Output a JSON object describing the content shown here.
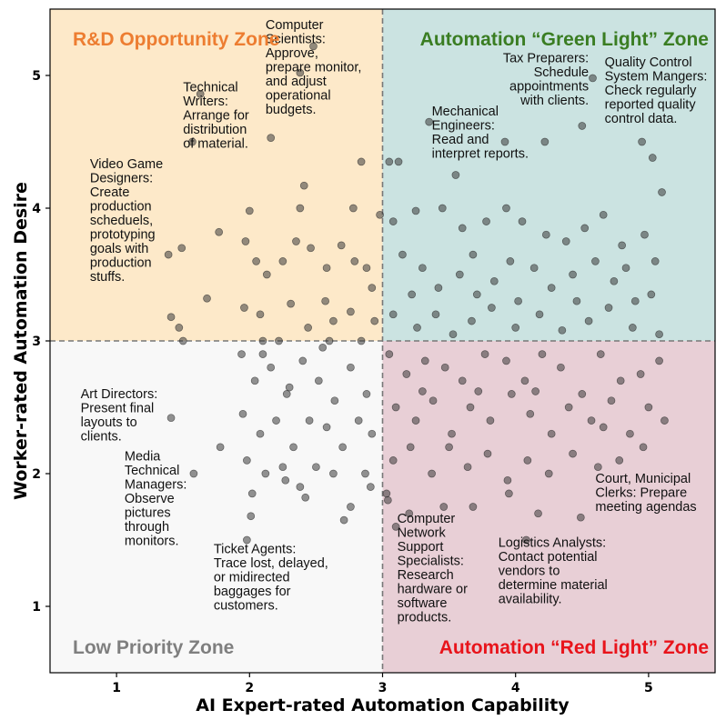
{
  "chart_data": {
    "type": "scatter",
    "xlabel": "AI Expert-rated Automation Capability",
    "ylabel": "Worker-rated Automation Desire",
    "xlim": [
      0.5,
      5.5
    ],
    "ylim": [
      0.5,
      5.5
    ],
    "xticks": [
      "1",
      "2",
      "3",
      "4",
      "5"
    ],
    "yticks": [
      "1",
      "2",
      "3",
      "4",
      "5"
    ],
    "threshold_x": 3,
    "threshold_y": 3,
    "grid": false,
    "zones": [
      {
        "label": "R&D Opportunity Zone",
        "color": "#ED7D31",
        "fill": "#FDE9C9",
        "quadrant": "top-left"
      },
      {
        "label": "Automation “Green Light” Zone",
        "color": "#3A7D22",
        "fill": "#CBE3E1",
        "quadrant": "top-right"
      },
      {
        "label": "Low Priority Zone",
        "color": "#7F7F7F",
        "fill": "#F8F8F8",
        "quadrant": "bottom-left"
      },
      {
        "label": "Automation “Red Light” Zone",
        "color": "#E8141B",
        "fill": "#E8CFD6",
        "quadrant": "bottom-right"
      }
    ],
    "annotations": [
      {
        "lines": [
          "Computer",
          "Scientists:",
          "Approve,",
          "prepare monitor,",
          "and adjust",
          "operational",
          "budgets."
        ],
        "x": 2.12,
        "y": 5.35
      },
      {
        "lines": [
          "Technical",
          "Writers:",
          "Arrange for",
          "distribution",
          "of material."
        ],
        "x": 1.5,
        "y": 4.88
      },
      {
        "lines": [
          "Video Game",
          "Designers:",
          "Create",
          "production",
          "scheduels,",
          "prototyping",
          "goals with",
          "production",
          "stuffs."
        ],
        "x": 0.8,
        "y": 4.3
      },
      {
        "lines": [
          "Art Directors:",
          "Present final",
          "layouts to",
          "clients."
        ],
        "x": 0.73,
        "y": 2.57
      },
      {
        "lines": [
          "Media",
          "Technical",
          "Managers:",
          "Observe",
          "pictures",
          "through",
          "monitors."
        ],
        "x": 1.06,
        "y": 2.1
      },
      {
        "lines": [
          "Ticket Agents:",
          "Trace lost, delayed,",
          "or midirected",
          "baggages for",
          "customers."
        ],
        "x": 1.73,
        "y": 1.4
      },
      {
        "lines": [
          "Tax Preparers:",
          "Schedule",
          "appointments",
          "with clients."
        ],
        "x": 4.55,
        "y": 5.1,
        "anchor": "end"
      },
      {
        "lines": [
          "Quality Control",
          "System Mangers:",
          "Check regularly",
          "reported quality",
          "control data."
        ],
        "x": 4.67,
        "y": 5.07
      },
      {
        "lines": [
          "Mechanical",
          "Engineers:",
          "Read and",
          "interpret reports."
        ],
        "x": 3.37,
        "y": 4.7
      },
      {
        "lines": [
          "Computer",
          "Network",
          "Support",
          "Specialists:",
          "Research",
          "hardware or",
          "software",
          "products."
        ],
        "x": 3.11,
        "y": 1.63
      },
      {
        "lines": [
          "Logistics Analysts:",
          "Contact potential",
          "vendors to",
          "determine material",
          "availability."
        ],
        "x": 3.87,
        "y": 1.45
      },
      {
        "lines": [
          "Court, Municipal",
          "Clerks: Prepare",
          "meeting agendas"
        ],
        "x": 4.6,
        "y": 1.93
      }
    ],
    "series": [
      {
        "points": [
          [
            2.38,
            5.02
          ],
          [
            2.48,
            5.22
          ],
          [
            1.63,
            4.86
          ],
          [
            1.57,
            4.5
          ],
          [
            2.16,
            4.53
          ],
          [
            2.84,
            4.35
          ],
          [
            3.05,
            4.35
          ],
          [
            2.41,
            4.17
          ],
          [
            2.0,
            3.98
          ],
          [
            2.38,
            4.0
          ],
          [
            2.78,
            4.0
          ],
          [
            2.98,
            3.95
          ],
          [
            1.39,
            3.65
          ],
          [
            1.49,
            3.7
          ],
          [
            1.77,
            3.82
          ],
          [
            1.97,
            3.75
          ],
          [
            2.05,
            3.6
          ],
          [
            2.13,
            3.5
          ],
          [
            2.25,
            3.6
          ],
          [
            2.35,
            3.75
          ],
          [
            2.46,
            3.7
          ],
          [
            2.58,
            3.55
          ],
          [
            2.69,
            3.72
          ],
          [
            2.79,
            3.6
          ],
          [
            2.88,
            3.55
          ],
          [
            2.92,
            3.4
          ],
          [
            1.41,
            3.18
          ],
          [
            1.47,
            3.1
          ],
          [
            1.68,
            3.32
          ],
          [
            1.96,
            3.25
          ],
          [
            2.08,
            3.2
          ],
          [
            2.22,
            3.0
          ],
          [
            2.31,
            3.28
          ],
          [
            2.44,
            3.1
          ],
          [
            2.57,
            3.3
          ],
          [
            2.63,
            3.15
          ],
          [
            2.76,
            3.22
          ],
          [
            2.84,
            3.0
          ],
          [
            2.94,
            3.15
          ],
          [
            1.5,
            3.0
          ],
          [
            2.1,
            3.0
          ],
          [
            2.6,
            3.0
          ],
          [
            3.12,
            4.35
          ],
          [
            3.35,
            4.65
          ],
          [
            3.55,
            4.25
          ],
          [
            3.92,
            4.5
          ],
          [
            4.22,
            4.5
          ],
          [
            4.5,
            4.62
          ],
          [
            4.58,
            4.98
          ],
          [
            4.95,
            4.5
          ],
          [
            5.03,
            4.38
          ],
          [
            5.1,
            4.12
          ],
          [
            3.08,
            3.9
          ],
          [
            3.25,
            3.98
          ],
          [
            3.45,
            4.0
          ],
          [
            3.6,
            3.85
          ],
          [
            3.78,
            3.9
          ],
          [
            3.93,
            4.0
          ],
          [
            4.05,
            3.9
          ],
          [
            4.23,
            3.8
          ],
          [
            4.38,
            3.75
          ],
          [
            4.52,
            3.85
          ],
          [
            4.66,
            3.95
          ],
          [
            4.8,
            3.72
          ],
          [
            4.97,
            3.8
          ],
          [
            5.05,
            3.6
          ],
          [
            3.15,
            3.65
          ],
          [
            3.3,
            3.55
          ],
          [
            3.42,
            3.4
          ],
          [
            3.58,
            3.5
          ],
          [
            3.71,
            3.35
          ],
          [
            3.84,
            3.45
          ],
          [
            3.96,
            3.6
          ],
          [
            4.14,
            3.55
          ],
          [
            4.27,
            3.4
          ],
          [
            4.43,
            3.5
          ],
          [
            4.6,
            3.6
          ],
          [
            4.74,
            3.45
          ],
          [
            4.9,
            3.3
          ],
          [
            5.02,
            3.35
          ],
          [
            3.08,
            3.2
          ],
          [
            3.26,
            3.1
          ],
          [
            3.4,
            3.2
          ],
          [
            3.53,
            3.05
          ],
          [
            3.67,
            3.15
          ],
          [
            3.82,
            3.25
          ],
          [
            4.0,
            3.1
          ],
          [
            4.18,
            3.2
          ],
          [
            4.35,
            3.08
          ],
          [
            4.55,
            3.15
          ],
          [
            4.7,
            3.25
          ],
          [
            4.88,
            3.1
          ],
          [
            5.08,
            3.05
          ],
          [
            3.22,
            3.35
          ],
          [
            3.68,
            3.65
          ],
          [
            4.02,
            3.3
          ],
          [
            4.46,
            3.3
          ],
          [
            4.83,
            3.55
          ],
          [
            3.05,
            2.9
          ],
          [
            3.18,
            2.75
          ],
          [
            3.32,
            2.85
          ],
          [
            3.47,
            2.8
          ],
          [
            3.6,
            2.7
          ],
          [
            3.77,
            2.9
          ],
          [
            3.93,
            2.85
          ],
          [
            4.07,
            2.7
          ],
          [
            4.2,
            2.9
          ],
          [
            4.34,
            2.8
          ],
          [
            4.5,
            2.6
          ],
          [
            4.64,
            2.9
          ],
          [
            4.79,
            2.7
          ],
          [
            4.94,
            2.75
          ],
          [
            5.08,
            2.85
          ],
          [
            3.1,
            2.5
          ],
          [
            3.25,
            2.4
          ],
          [
            3.38,
            2.55
          ],
          [
            3.52,
            2.3
          ],
          [
            3.66,
            2.5
          ],
          [
            3.81,
            2.4
          ],
          [
            3.97,
            2.6
          ],
          [
            4.11,
            2.45
          ],
          [
            4.27,
            2.3
          ],
          [
            4.4,
            2.5
          ],
          [
            4.57,
            2.4
          ],
          [
            4.72,
            2.55
          ],
          [
            4.86,
            2.3
          ],
          [
            5.0,
            2.5
          ],
          [
            5.12,
            2.4
          ],
          [
            3.08,
            2.1
          ],
          [
            3.21,
            2.2
          ],
          [
            3.37,
            2.0
          ],
          [
            3.5,
            2.2
          ],
          [
            3.64,
            2.05
          ],
          [
            3.79,
            2.15
          ],
          [
            3.94,
            1.95
          ],
          [
            4.09,
            2.1
          ],
          [
            4.25,
            2.0
          ],
          [
            4.43,
            2.15
          ],
          [
            4.62,
            2.05
          ],
          [
            4.78,
            2.1
          ],
          [
            4.96,
            2.2
          ],
          [
            3.04,
            1.8
          ],
          [
            3.2,
            1.7
          ],
          [
            3.46,
            1.75
          ],
          [
            3.68,
            1.75
          ],
          [
            3.95,
            1.85
          ],
          [
            4.17,
            1.7
          ],
          [
            4.49,
            1.67
          ],
          [
            3.1,
            1.6
          ],
          [
            4.08,
            1.5
          ],
          [
            3.03,
            1.85
          ],
          [
            3.3,
            2.62
          ],
          [
            3.72,
            2.62
          ],
          [
            4.15,
            2.62
          ],
          [
            4.66,
            2.35
          ],
          [
            1.41,
            2.42
          ],
          [
            1.58,
            2.0
          ],
          [
            1.78,
            2.2
          ],
          [
            1.94,
            2.9
          ],
          [
            2.04,
            2.7
          ],
          [
            2.16,
            2.8
          ],
          [
            2.28,
            2.6
          ],
          [
            2.4,
            2.85
          ],
          [
            2.52,
            2.7
          ],
          [
            2.64,
            2.55
          ],
          [
            2.76,
            2.8
          ],
          [
            2.88,
            2.6
          ],
          [
            1.95,
            2.45
          ],
          [
            2.08,
            2.3
          ],
          [
            2.2,
            2.4
          ],
          [
            2.33,
            2.2
          ],
          [
            2.45,
            2.4
          ],
          [
            2.58,
            2.35
          ],
          [
            2.7,
            2.2
          ],
          [
            2.82,
            2.4
          ],
          [
            2.92,
            2.3
          ],
          [
            1.98,
            2.1
          ],
          [
            2.12,
            2.0
          ],
          [
            2.25,
            2.05
          ],
          [
            2.38,
            1.9
          ],
          [
            2.5,
            2.05
          ],
          [
            2.63,
            2.0
          ],
          [
            2.76,
            1.75
          ],
          [
            2.87,
            2.0
          ],
          [
            2.02,
            1.85
          ],
          [
            2.27,
            1.95
          ],
          [
            2.42,
            1.82
          ],
          [
            2.71,
            1.65
          ],
          [
            2.91,
            1.9
          ],
          [
            2.01,
            1.68
          ],
          [
            1.98,
            1.5
          ],
          [
            2.1,
            2.9
          ],
          [
            2.55,
            2.95
          ],
          [
            2.3,
            2.65
          ]
        ]
      }
    ]
  }
}
